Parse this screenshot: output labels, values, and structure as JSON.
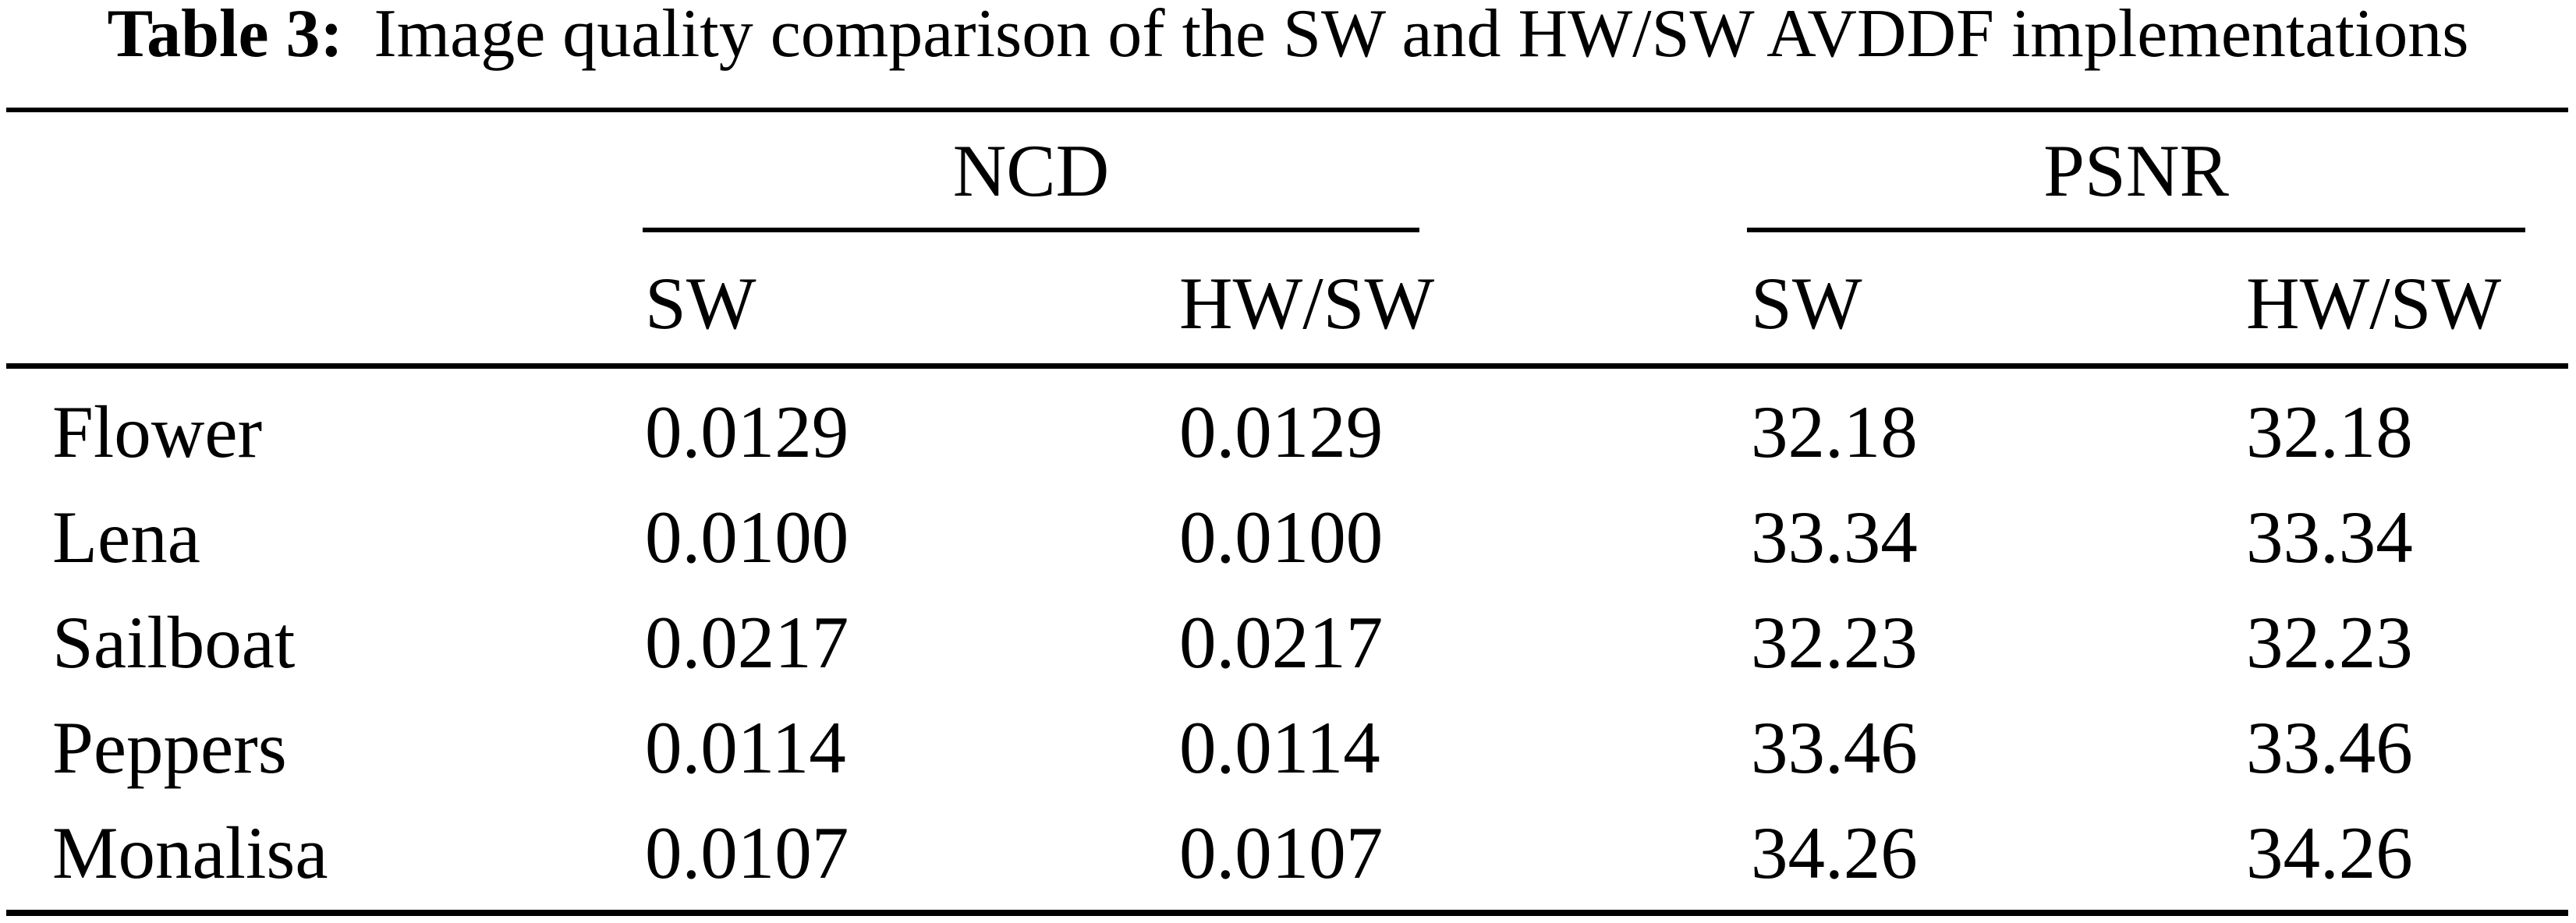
{
  "caption": {
    "label": "Table 3:",
    "text": "Image quality comparison of the SW and HW/SW AVDDF implementations"
  },
  "groups": [
    {
      "label": "NCD"
    },
    {
      "label": "PSNR"
    }
  ],
  "subheaders": [
    "SW",
    "HW/SW",
    "SW",
    "HW/SW"
  ],
  "rows": [
    [
      "Flower",
      "0.0129",
      "0.0129",
      "32.18",
      "32.18"
    ],
    [
      "Lena",
      "0.0100",
      "0.0100",
      "33.34",
      "33.34"
    ],
    [
      "Sailboat",
      "0.0217",
      "0.0217",
      "32.23",
      "32.23"
    ],
    [
      "Peppers",
      "0.0114",
      "0.0114",
      "33.46",
      "33.46"
    ],
    [
      "Monalisa",
      "0.0107",
      "0.0107",
      "34.26",
      "34.26"
    ]
  ],
  "colors": {
    "text": "#000000",
    "background": "#ffffff",
    "rule": "#000000"
  }
}
